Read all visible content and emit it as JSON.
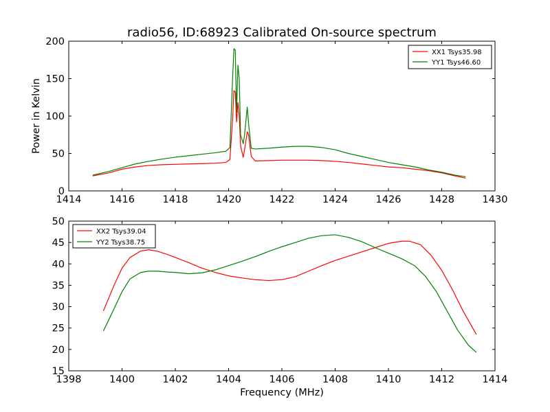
{
  "figure": {
    "title": "radio56, ID:68923 Calibrated On-source spectrum"
  },
  "chart_data": [
    {
      "type": "line",
      "title": "radio56, ID:68923 Calibrated On-source spectrum",
      "xlabel": "",
      "ylabel": "Power in Kelvin",
      "xlim": [
        1414,
        1430
      ],
      "ylim": [
        0,
        200
      ],
      "xticks": [
        1414,
        1416,
        1418,
        1420,
        1422,
        1424,
        1426,
        1428,
        1430
      ],
      "yticks": [
        0,
        50,
        100,
        150,
        200
      ],
      "grid": false,
      "legend_position": "top-right",
      "series": [
        {
          "name": "XX1 Tsys35.98",
          "color": "#ff0000",
          "x": [
            1414.9,
            1415.5,
            1416,
            1416.5,
            1417,
            1417.5,
            1418,
            1418.5,
            1419,
            1419.5,
            1419.9,
            1420.05,
            1420.15,
            1420.2,
            1420.25,
            1420.3,
            1420.35,
            1420.4,
            1420.45,
            1420.55,
            1420.6,
            1420.7,
            1420.75,
            1420.85,
            1421,
            1421.5,
            1422,
            1422.5,
            1423,
            1423.5,
            1424,
            1424.5,
            1425,
            1425.5,
            1426,
            1426.5,
            1427,
            1427.5,
            1428,
            1428.5,
            1428.9
          ],
          "y": [
            20,
            24,
            29,
            32,
            34,
            35,
            35.5,
            36,
            36.5,
            37,
            38,
            42,
            95,
            134,
            132,
            92,
            118,
            100,
            60,
            45,
            55,
            79,
            75,
            46,
            40,
            40.5,
            41,
            41,
            41,
            40.5,
            39.5,
            38,
            36,
            34,
            32,
            31,
            29,
            27,
            24,
            20,
            17
          ]
        },
        {
          "name": "YY1 Tsys46.60",
          "color": "#008000",
          "x": [
            1414.9,
            1415.5,
            1416,
            1416.5,
            1417,
            1417.5,
            1418,
            1418.5,
            1419,
            1419.5,
            1419.9,
            1420.05,
            1420.15,
            1420.2,
            1420.25,
            1420.3,
            1420.35,
            1420.4,
            1420.45,
            1420.55,
            1420.6,
            1420.7,
            1420.75,
            1420.85,
            1421,
            1421.5,
            1422,
            1422.5,
            1423,
            1423.5,
            1424,
            1424.5,
            1425,
            1425.5,
            1426,
            1426.5,
            1427,
            1427.5,
            1428,
            1428.5,
            1428.9
          ],
          "y": [
            21,
            26,
            31,
            36,
            39.5,
            42.5,
            45,
            47,
            49,
            51,
            53,
            58,
            150,
            190,
            188,
            105,
            168,
            150,
            75,
            63,
            75,
            112,
            90,
            57,
            56,
            57,
            58.5,
            59.5,
            59.5,
            58,
            55,
            50,
            46,
            42,
            38,
            35,
            32,
            28,
            25,
            21,
            19
          ]
        }
      ]
    },
    {
      "type": "line",
      "title": "",
      "xlabel": "Frequency (MHz)",
      "ylabel": "",
      "xlim": [
        1398,
        1414
      ],
      "ylim": [
        15,
        50
      ],
      "xticks": [
        1398,
        1400,
        1402,
        1404,
        1406,
        1408,
        1410,
        1412,
        1414
      ],
      "yticks": [
        15,
        20,
        25,
        30,
        35,
        40,
        45,
        50
      ],
      "grid": false,
      "legend_position": "top-left",
      "series": [
        {
          "name": "XX2 Tsys39.04",
          "color": "#ff0000",
          "x": [
            1399.3,
            1399.7,
            1400,
            1400.3,
            1400.7,
            1401,
            1401.3,
            1401.7,
            1402,
            1402.5,
            1403,
            1403.5,
            1404,
            1404.5,
            1405,
            1405.5,
            1406,
            1406.5,
            1407,
            1407.5,
            1408,
            1408.5,
            1409,
            1409.5,
            1410,
            1410.5,
            1410.8,
            1411.2,
            1411.6,
            1412,
            1412.4,
            1412.8,
            1413.3
          ],
          "y": [
            29,
            35,
            39,
            41.5,
            43,
            43.3,
            43,
            42.2,
            41.5,
            40.3,
            39,
            38,
            37.2,
            36.7,
            36.3,
            36.1,
            36.3,
            37,
            38.3,
            39.6,
            40.8,
            41.8,
            42.8,
            43.8,
            44.8,
            45.3,
            45.3,
            44.5,
            42,
            38.5,
            34,
            29,
            23.5
          ]
        },
        {
          "name": "YY2 Tsys38.75",
          "color": "#008000",
          "x": [
            1399.3,
            1399.7,
            1400,
            1400.3,
            1400.7,
            1401,
            1401.3,
            1401.7,
            1402,
            1402.5,
            1403,
            1403.5,
            1404,
            1404.5,
            1405,
            1405.5,
            1406,
            1406.5,
            1407,
            1407.5,
            1408,
            1408.5,
            1409,
            1409.5,
            1410,
            1410.5,
            1411,
            1411.4,
            1411.8,
            1412.2,
            1412.6,
            1413,
            1413.3
          ],
          "y": [
            24.3,
            29.5,
            33.5,
            36.5,
            38,
            38.3,
            38.3,
            38.1,
            38,
            37.7,
            37.9,
            38.6,
            39.6,
            40.6,
            41.7,
            42.9,
            44,
            45,
            46,
            46.6,
            46.8,
            46.2,
            45.2,
            43.8,
            42.5,
            41.2,
            39.5,
            37,
            33.5,
            29,
            24.5,
            21,
            19.3
          ]
        }
      ]
    }
  ]
}
